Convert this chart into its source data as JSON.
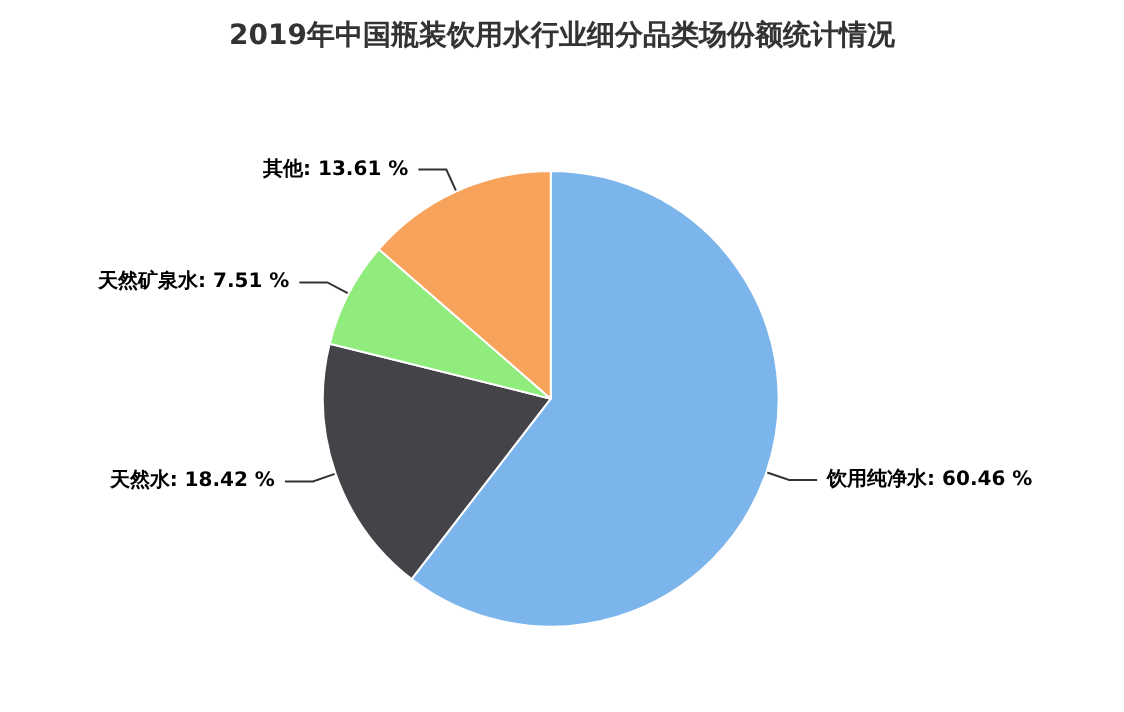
{
  "chart_data": {
    "type": "pie",
    "title": "2019年中国瓶装饮用水行业细分品类场份额统计情况",
    "categories": [
      "饮用纯净水",
      "天然水",
      "天然矿泉水",
      "其他"
    ],
    "values": [
      60.46,
      18.42,
      7.51,
      13.61
    ],
    "colors": [
      "#7cb5ec",
      "#434348",
      "#90ed7d",
      "#f7a35c"
    ],
    "value_labels": [
      "60.46 %",
      "18.42 %",
      "7.51 %",
      "13.61 %"
    ],
    "legend": false
  }
}
